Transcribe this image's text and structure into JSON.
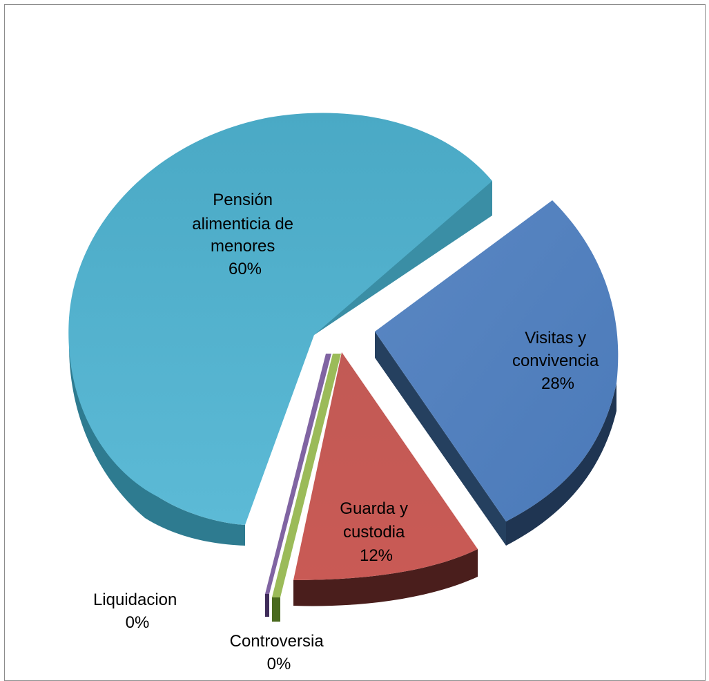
{
  "chart_data": {
    "type": "pie",
    "title": "",
    "style": "3d-exploded",
    "slices": [
      {
        "category": "Pensión alimenticia de menores",
        "label_lines": [
          "Pensión",
          "alimenticia de",
          "menores"
        ],
        "percent_label": "60%",
        "value": 60,
        "color": "#4bacc6"
      },
      {
        "category": "Visitas y convivencia",
        "label_lines": [
          "Visitas y",
          "convivencia"
        ],
        "percent_label": "28%",
        "value": 28,
        "color": "#4f81bd"
      },
      {
        "category": "Guarda y custodia",
        "label_lines": [
          "Guarda y",
          "custodia"
        ],
        "percent_label": "12%",
        "value": 12,
        "color": "#c0504d"
      },
      {
        "category": "Controversia",
        "label_lines": [
          "Controversia"
        ],
        "percent_label": "0%",
        "value": 0.4,
        "color": "#9bbb59"
      },
      {
        "category": "Liquidacion",
        "label_lines": [
          "Liquidacion"
        ],
        "percent_label": "0%",
        "value": 0.2,
        "color": "#8064a2"
      }
    ]
  }
}
